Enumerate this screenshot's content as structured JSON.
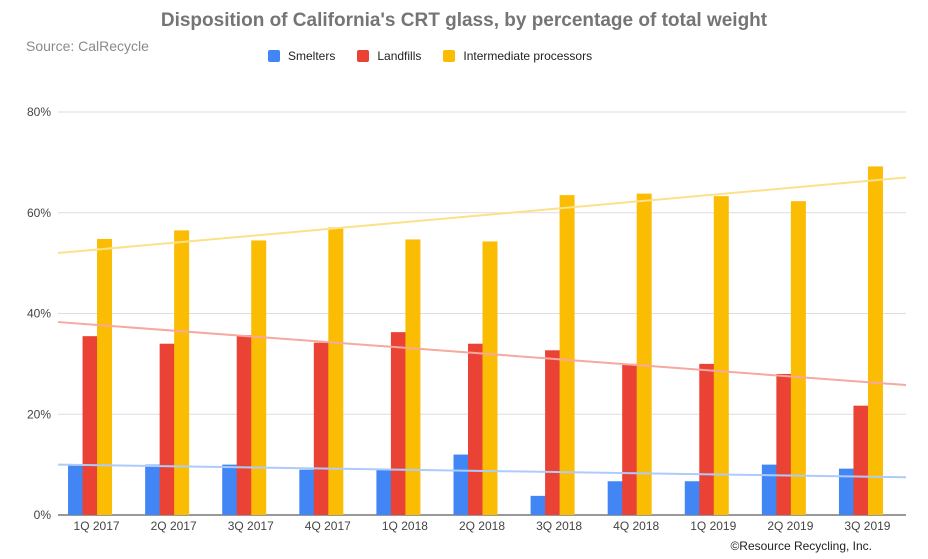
{
  "chart_data": {
    "type": "bar",
    "title": "Disposition of California's CRT glass, by percentage of total weight",
    "subtitle": "Source: CalRecycle",
    "categories": [
      "1Q 2017",
      "2Q 2017",
      "3Q 2017",
      "4Q 2017",
      "1Q 2018",
      "2Q 2018",
      "3Q 2018",
      "4Q 2018",
      "1Q 2019",
      "2Q 2019",
      "3Q 2019"
    ],
    "series": [
      {
        "name": "Smelters",
        "color": "#4285f4",
        "trendline_color": "#aecbfa",
        "values": [
          10,
          10,
          10,
          9,
          9.2,
          12,
          3.8,
          6.7,
          6.7,
          10,
          9.2
        ],
        "trendline": [
          10.0,
          7.5
        ]
      },
      {
        "name": "Landfills",
        "color": "#ea4335",
        "trendline_color": "#f5a99f",
        "values": [
          35.5,
          34,
          35.7,
          34.2,
          36.3,
          34,
          32.7,
          30,
          30,
          28,
          21.7
        ],
        "trendline": [
          38.3,
          25.8
        ]
      },
      {
        "name": "Intermediate processors",
        "color": "#fbbc04",
        "trendline_color": "#fde08a",
        "values": [
          54.8,
          56.5,
          54.5,
          57.1,
          54.7,
          54.3,
          63.5,
          63.8,
          63.3,
          62.3,
          69.2
        ],
        "trendline": [
          52.0,
          67.0
        ]
      }
    ],
    "y_ticks": [
      "0%",
      "20%",
      "40%",
      "60%",
      "80%"
    ],
    "ylim": [
      0,
      80
    ],
    "grid": true,
    "legend_position": "top"
  },
  "credit": "©Resource Recycling, Inc."
}
